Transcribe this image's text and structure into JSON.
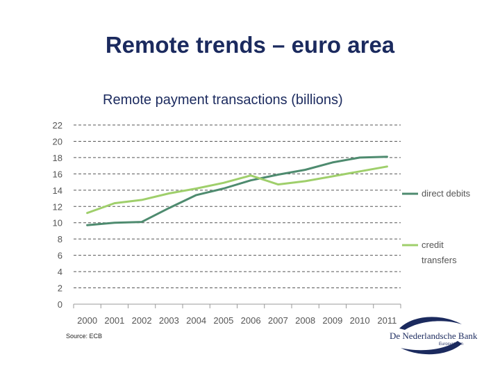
{
  "slide": {
    "title": "Remote trends – euro area",
    "source": "Source: ECB"
  },
  "logo": {
    "name": "De Nederlandsche Bank",
    "sub": "Eurosysteem",
    "color": "#1b2a5e"
  },
  "chart_data": {
    "type": "line",
    "title": "Remote payment transactions (billions)",
    "xlabel": "",
    "ylabel": "",
    "categories": [
      "2000",
      "2001",
      "2002",
      "2003",
      "2004",
      "2005",
      "2006",
      "2007",
      "2008",
      "2009",
      "2010",
      "2011"
    ],
    "ylim": [
      0,
      22
    ],
    "yticks": [
      0,
      2,
      4,
      6,
      8,
      10,
      12,
      14,
      16,
      18,
      20,
      22
    ],
    "grid": "horizontal dashed",
    "legend": "right",
    "series": [
      {
        "name": "direct debits",
        "color": "#4e8b6f",
        "values": [
          9.7,
          10.0,
          10.1,
          11.8,
          13.4,
          14.2,
          15.2,
          15.9,
          16.5,
          17.4,
          18.0,
          18.1
        ]
      },
      {
        "name": "credit transfers",
        "color": "#9fcf6b",
        "values": [
          11.2,
          12.4,
          12.8,
          13.6,
          14.2,
          14.9,
          15.8,
          14.7,
          15.1,
          15.7,
          16.3,
          16.9
        ]
      }
    ]
  }
}
